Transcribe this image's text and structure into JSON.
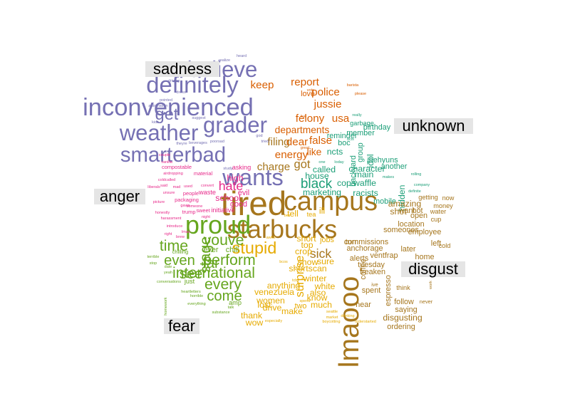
{
  "chart_data": {
    "type": "wordcloud",
    "title": "",
    "groups": [
      {
        "name": "sadness",
        "color": "#7570b3"
      },
      {
        "name": "unknown",
        "color": "#1b9e77"
      },
      {
        "name": "anger",
        "color": "#e7298a"
      },
      {
        "name": "disgust",
        "color": "#a6761d"
      },
      {
        "name": "fear",
        "color": "#66a61e"
      },
      {
        "name": "anticipation",
        "color": "#d95f02"
      },
      {
        "name": "joy",
        "color": "#e6ab02"
      }
    ],
    "group_labels": [
      "sadness",
      "unknown",
      "anger",
      "disgust",
      "fear"
    ],
    "words": [
      {
        "text": "tired",
        "group": "disgust",
        "freq": 48
      },
      {
        "text": "lmaooo",
        "group": "disgust",
        "freq": 36
      },
      {
        "text": "campus",
        "group": "disgust",
        "freq": 34
      },
      {
        "text": "starbucks",
        "group": "disgust",
        "freq": 32
      },
      {
        "text": "inconvenienced",
        "group": "sadness",
        "freq": 30
      },
      {
        "text": "proud",
        "group": "fear",
        "freq": 32
      },
      {
        "text": "definitely",
        "group": "sadness",
        "freq": 28
      },
      {
        "text": "wants",
        "group": "sadness",
        "freq": 28
      },
      {
        "text": "believe",
        "group": "sadness",
        "freq": 26
      },
      {
        "text": "grader",
        "group": "sadness",
        "freq": 26
      },
      {
        "text": "weather",
        "group": "sadness",
        "freq": 26
      },
      {
        "text": "smarterbad",
        "group": "sadness",
        "freq": 24
      },
      {
        "text": "get",
        "group": "sadness",
        "freq": 18
      },
      {
        "text": "stupid",
        "group": "joy",
        "freq": 18
      },
      {
        "text": "youve",
        "group": "fear",
        "freq": 16
      },
      {
        "text": "time",
        "group": "fear",
        "freq": 16
      },
      {
        "text": "stage",
        "group": "fear",
        "freq": 16
      },
      {
        "text": "perform",
        "group": "fear",
        "freq": 16
      },
      {
        "text": "international",
        "group": "fear",
        "freq": 16
      },
      {
        "text": "every",
        "group": "fear",
        "freq": 16
      },
      {
        "text": "even",
        "group": "fear",
        "freq": 15
      },
      {
        "text": "far",
        "group": "fear",
        "freq": 15
      },
      {
        "text": "see",
        "group": "fear",
        "freq": 15
      },
      {
        "text": "come",
        "group": "fear",
        "freq": 15
      },
      {
        "text": "black",
        "group": "unknown",
        "freq": 14
      },
      {
        "text": "hate",
        "group": "anger",
        "freq": 13
      },
      {
        "text": "sick",
        "group": "disgust",
        "freq": 13
      },
      {
        "text": "surprise",
        "group": "joy",
        "freq": 12
      },
      {
        "text": "got",
        "group": "disgust",
        "freq": 12
      },
      {
        "text": "charge",
        "group": "disgust",
        "freq": 11
      },
      {
        "text": "energy",
        "group": "anticipation",
        "freq": 11
      },
      {
        "text": "filing",
        "group": "disgust",
        "freq": 11
      },
      {
        "text": "keep",
        "group": "anticipation",
        "freq": 11
      },
      {
        "text": "report",
        "group": "anticipation",
        "freq": 11
      },
      {
        "text": "felony",
        "group": "anticipation",
        "freq": 11
      },
      {
        "text": "usa",
        "group": "anticipation",
        "freq": 11
      },
      {
        "text": "jussie",
        "group": "anticipation",
        "freq": 11
      },
      {
        "text": "police",
        "group": "anticipation",
        "freq": 11
      },
      {
        "text": "dear",
        "group": "anticipation",
        "freq": 11
      },
      {
        "text": "false",
        "group": "anticipation",
        "freq": 11
      },
      {
        "text": "departments",
        "group": "anticipation",
        "freq": 10
      },
      {
        "text": "like",
        "group": "anticipation",
        "freq": 10
      },
      {
        "text": "hidden",
        "group": "unknown",
        "freq": 9
      },
      {
        "text": "idol",
        "group": "unknown",
        "freq": 9
      },
      {
        "text": "ncts",
        "group": "unknown",
        "freq": 9
      },
      {
        "text": "house",
        "group": "unknown",
        "freq": 9
      },
      {
        "text": "called",
        "group": "unknown",
        "freq": 9
      },
      {
        "text": "marketing",
        "group": "unknown",
        "freq": 9
      },
      {
        "text": "cops",
        "group": "unknown",
        "freq": 9
      },
      {
        "text": "waffle",
        "group": "unknown",
        "freq": 9
      },
      {
        "text": "racists",
        "group": "unknown",
        "freq": 9
      },
      {
        "text": "main",
        "group": "unknown",
        "freq": 9
      },
      {
        "text": "character",
        "group": "unknown",
        "freq": 9
      },
      {
        "text": "another",
        "group": "unknown",
        "freq": 8
      },
      {
        "text": "jaehyuns",
        "group": "unknown",
        "freq": 8
      },
      {
        "text": "birthday",
        "group": "unknown",
        "freq": 8
      },
      {
        "text": "member",
        "group": "unknown",
        "freq": 8
      },
      {
        "text": "garbage",
        "group": "unknown",
        "freq": 7
      },
      {
        "text": "backyard",
        "group": "unknown",
        "freq": 8
      },
      {
        "text": "group",
        "group": "unknown",
        "freq": 8
      },
      {
        "text": "boc",
        "group": "unknown",
        "freq": 8
      },
      {
        "text": "reminder",
        "group": "unknown",
        "freq": 8
      },
      {
        "text": "mobile",
        "group": "unknown",
        "freq": 8
      },
      {
        "text": "school",
        "group": "anger",
        "freq": 9
      },
      {
        "text": "high",
        "group": "anger",
        "freq": 9
      },
      {
        "text": "evil",
        "group": "anger",
        "freq": 8
      },
      {
        "text": "good",
        "group": "anger",
        "freq": 8
      },
      {
        "text": "asking",
        "group": "anger",
        "freq": 7
      },
      {
        "text": "initiative",
        "group": "anger",
        "freq": 7
      },
      {
        "text": "waste",
        "group": "anger",
        "freq": 7
      },
      {
        "text": "people",
        "group": "anger",
        "freq": 6
      },
      {
        "text": "sweet",
        "group": "anger",
        "freq": 6
      },
      {
        "text": "trump",
        "group": "anger",
        "freq": 6
      },
      {
        "text": "packaging",
        "group": "anger",
        "freq": 6
      },
      {
        "text": "material",
        "group": "anger",
        "freq": 6
      },
      {
        "text": "compostable",
        "group": "anger",
        "freq": 6
      },
      {
        "text": "honestly",
        "group": "anger",
        "freq": 5
      },
      {
        "text": "harassment",
        "group": "anger",
        "freq": 5
      },
      {
        "text": "introduce",
        "group": "anger",
        "freq": 5
      },
      {
        "text": "picture",
        "group": "anger",
        "freq": 5
      },
      {
        "text": "unsure",
        "group": "anger",
        "freq": 5
      },
      {
        "text": "airdropping",
        "group": "anger",
        "freq": 5
      },
      {
        "text": "vanilla",
        "group": "anger",
        "freq": 5
      },
      {
        "text": "couple",
        "group": "anger",
        "freq": 5
      },
      {
        "text": "liberals",
        "group": "anger",
        "freq": 5
      },
      {
        "text": "said",
        "group": "anger",
        "freq": 5
      },
      {
        "text": "mad",
        "group": "anger",
        "freq": 5
      },
      {
        "text": "used",
        "group": "anger",
        "freq": 5
      },
      {
        "text": "coldcalled",
        "group": "anger",
        "freq": 5
      },
      {
        "text": "right",
        "group": "anger",
        "freq": 5
      },
      {
        "text": "lmao",
        "group": "anger",
        "freq": 5
      },
      {
        "text": "brew",
        "group": "anger",
        "freq": 5
      },
      {
        "text": "night",
        "group": "anger",
        "freq": 5
      },
      {
        "text": "convert",
        "group": "anger",
        "freq": 5
      },
      {
        "text": "gavin",
        "group": "anger",
        "freq": 5
      },
      {
        "text": "someone",
        "group": "anger",
        "freq": 5
      },
      {
        "text": "theyre",
        "group": "sadness",
        "freq": 5
      },
      {
        "text": "beverages",
        "group": "sadness",
        "freq": 5
      },
      {
        "text": "poorsad",
        "group": "sadness",
        "freq": 5
      },
      {
        "text": "suggest",
        "group": "sadness",
        "freq": 5
      },
      {
        "text": "god",
        "group": "sadness",
        "freq": 5
      },
      {
        "text": "pointed",
        "group": "sadness",
        "freq": 5
      },
      {
        "text": "automation",
        "group": "sadness",
        "freq": 5
      },
      {
        "text": "dress",
        "group": "sadness",
        "freq": 5
      },
      {
        "text": "driving",
        "group": "sadness",
        "freq": 5
      },
      {
        "text": "realize",
        "group": "sadness",
        "freq": 5
      },
      {
        "text": "heard",
        "group": "sadness",
        "freq": 5
      },
      {
        "text": "kids",
        "group": "sadness",
        "freq": 5
      },
      {
        "text": "study",
        "group": "sadness",
        "freq": 5
      },
      {
        "text": "tried",
        "group": "sadness",
        "freq": 5
      },
      {
        "text": "amazing",
        "group": "disgust",
        "freq": 9
      },
      {
        "text": "shot",
        "group": "disgust",
        "freq": 9
      },
      {
        "text": "want",
        "group": "disgust",
        "freq": 8
      },
      {
        "text": "hot",
        "group": "disgust",
        "freq": 8
      },
      {
        "text": "open",
        "group": "disgust",
        "freq": 8
      },
      {
        "text": "location",
        "group": "disgust",
        "freq": 8
      },
      {
        "text": "someones",
        "group": "disgust",
        "freq": 8
      },
      {
        "text": "employee",
        "group": "disgust",
        "freq": 8
      },
      {
        "text": "turn",
        "group": "disgust",
        "freq": 8
      },
      {
        "text": "commissions",
        "group": "disgust",
        "freq": 8
      },
      {
        "text": "left",
        "group": "disgust",
        "freq": 8
      },
      {
        "text": "cold",
        "group": "disgust",
        "freq": 7
      },
      {
        "text": "later",
        "group": "disgust",
        "freq": 8
      },
      {
        "text": "home",
        "group": "disgust",
        "freq": 8
      },
      {
        "text": "since",
        "group": "disgust",
        "freq": 8
      },
      {
        "text": "ventfrap",
        "group": "disgust",
        "freq": 8
      },
      {
        "text": "alerts",
        "group": "disgust",
        "freq": 8
      },
      {
        "text": "anchorage",
        "group": "disgust",
        "freq": 8
      },
      {
        "text": "tuesday",
        "group": "disgust",
        "freq": 8
      },
      {
        "text": "freaken",
        "group": "disgust",
        "freq": 8
      },
      {
        "text": "coffee",
        "group": "disgust",
        "freq": 8
      },
      {
        "text": "spent",
        "group": "disgust",
        "freq": 8
      },
      {
        "text": "espresso",
        "group": "disgust",
        "freq": 8
      },
      {
        "text": "think",
        "group": "disgust",
        "freq": 7
      },
      {
        "text": "follow",
        "group": "disgust",
        "freq": 8
      },
      {
        "text": "saying",
        "group": "disgust",
        "freq": 8
      },
      {
        "text": "disgusting",
        "group": "disgust",
        "freq": 9
      },
      {
        "text": "hear",
        "group": "disgust",
        "freq": 8
      },
      {
        "text": "cup",
        "group": "disgust",
        "freq": 7
      },
      {
        "text": "water",
        "group": "disgust",
        "freq": 7
      },
      {
        "text": "money",
        "group": "disgust",
        "freq": 7
      },
      {
        "text": "now",
        "group": "disgust",
        "freq": 7
      },
      {
        "text": "getting",
        "group": "disgust",
        "freq": 7
      },
      {
        "text": "company",
        "group": "unknown",
        "freq": 5
      },
      {
        "text": "rolling",
        "group": "unknown",
        "freq": 5
      },
      {
        "text": "definite",
        "group": "unknown",
        "freq": 5
      },
      {
        "text": "makes",
        "group": "unknown",
        "freq": 5
      },
      {
        "text": "ordering",
        "group": "disgust",
        "freq": 8
      },
      {
        "text": "ive",
        "group": "disgust",
        "freq": 6
      },
      {
        "text": "sure",
        "group": "joy",
        "freq": 9
      },
      {
        "text": "show",
        "group": "joy",
        "freq": 9
      },
      {
        "text": "shortscan",
        "group": "joy",
        "freq": 9
      },
      {
        "text": "winter",
        "group": "joy",
        "freq": 9
      },
      {
        "text": "know",
        "group": "joy",
        "freq": 9
      },
      {
        "text": "white",
        "group": "joy",
        "freq": 9
      },
      {
        "text": "much",
        "group": "joy",
        "freq": 9
      },
      {
        "text": "make",
        "group": "joy",
        "freq": 9
      },
      {
        "text": "drive",
        "group": "joy",
        "freq": 9
      },
      {
        "text": "women",
        "group": "joy",
        "freq": 9
      },
      {
        "text": "venezuela",
        "group": "joy",
        "freq": 9
      },
      {
        "text": "anything",
        "group": "joy",
        "freq": 9
      },
      {
        "text": "lost",
        "group": "joy",
        "freq": 9
      },
      {
        "text": "thank",
        "group": "joy",
        "freq": 9
      },
      {
        "text": "wow",
        "group": "joy",
        "freq": 9
      },
      {
        "text": "also",
        "group": "joy",
        "freq": 9
      },
      {
        "text": "short",
        "group": "joy",
        "freq": 9
      },
      {
        "text": "top",
        "group": "joy",
        "freq": 9
      },
      {
        "text": "crop",
        "group": "joy",
        "freq": 9
      },
      {
        "text": "jobs",
        "group": "joy",
        "freq": 8
      },
      {
        "text": "tell",
        "group": "joy",
        "freq": 9
      },
      {
        "text": "tea",
        "group": "joy",
        "freq": 7
      },
      {
        "text": "ill",
        "group": "joy",
        "freq": 9
      },
      {
        "text": "two",
        "group": "joy",
        "freq": 8
      },
      {
        "text": "especially",
        "group": "joy",
        "freq": 5
      },
      {
        "text": "drinking",
        "group": "joy",
        "freq": 5
      },
      {
        "text": "ever",
        "group": "fear",
        "freq": 8
      },
      {
        "text": "chill",
        "group": "fear",
        "freq": 8
      },
      {
        "text": "chilling",
        "group": "fear",
        "freq": 6
      },
      {
        "text": "just",
        "group": "fear",
        "freq": 7
      },
      {
        "text": "amp",
        "group": "fear",
        "freq": 7
      },
      {
        "text": "conversations",
        "group": "fear",
        "freq": 5
      },
      {
        "text": "terrible",
        "group": "fear",
        "freq": 5
      },
      {
        "text": "stop",
        "group": "fear",
        "freq": 5
      },
      {
        "text": "date",
        "group": "fear",
        "freq": 5
      },
      {
        "text": "yeah",
        "group": "fear",
        "freq": 5
      },
      {
        "text": "homework",
        "group": "fear",
        "freq": 5
      },
      {
        "text": "heartletters",
        "group": "fear",
        "freq": 5
      },
      {
        "text": "horrible",
        "group": "fear",
        "freq": 5
      },
      {
        "text": "everything",
        "group": "fear",
        "freq": 5
      },
      {
        "text": "substance",
        "group": "fear",
        "freq": 5
      },
      {
        "text": "talk",
        "group": "fear",
        "freq": 5
      },
      {
        "text": "barista",
        "group": "anticipation",
        "freq": 5
      },
      {
        "text": "please",
        "group": "anticipation",
        "freq": 5
      },
      {
        "text": "vote",
        "group": "anticipation",
        "freq": 5
      },
      {
        "text": "love",
        "group": "anticipation",
        "freq": 8
      },
      {
        "text": "live",
        "group": "anticipation",
        "freq": 5
      },
      {
        "text": "great",
        "group": "anticipation",
        "freq": 5
      },
      {
        "text": "really",
        "group": "unknown",
        "freq": 5
      },
      {
        "text": "bcis",
        "group": "unknown",
        "freq": 5
      },
      {
        "text": "one",
        "group": "unknown",
        "freq": 5
      },
      {
        "text": "loday",
        "group": "unknown",
        "freq": 5
      },
      {
        "text": "never",
        "group": "disgust",
        "freq": 6
      },
      {
        "text": "work",
        "group": "disgust",
        "freq": 5
      },
      {
        "text": "boycotting",
        "group": "joy",
        "freq": 5
      },
      {
        "text": "seattle",
        "group": "joy",
        "freq": 5
      },
      {
        "text": "market",
        "group": "joy",
        "freq": 5
      },
      {
        "text": "orderstarted",
        "group": "joy",
        "freq": 5
      },
      {
        "text": "spend",
        "group": "joy",
        "freq": 5
      },
      {
        "text": "awful",
        "group": "joy",
        "freq": 5
      },
      {
        "text": "bes",
        "group": "joy",
        "freq": 5
      },
      {
        "text": "tcby",
        "group": "joy",
        "freq": 5
      },
      {
        "text": "bcos",
        "group": "joy",
        "freq": 5
      }
    ]
  }
}
